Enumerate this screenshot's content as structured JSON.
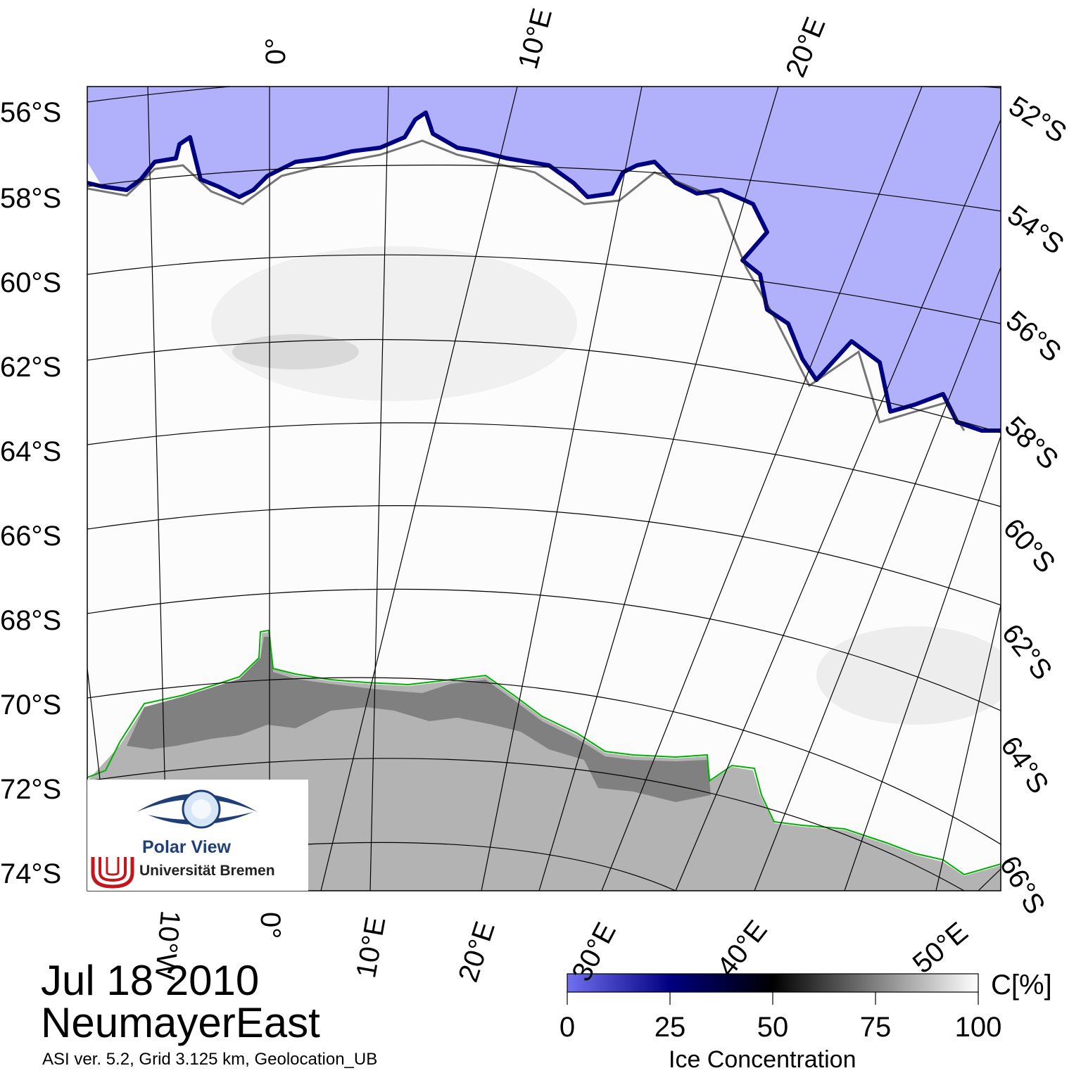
{
  "map": {
    "date": "Jul 18 2010",
    "region": "NeumayerEast",
    "metadata": "ASI ver. 5.2,  Grid 3.125 km, Geolocation_UB",
    "left_lat_labels": [
      "56°S",
      "58°S",
      "60°S",
      "62°S",
      "64°S",
      "66°S",
      "68°S",
      "70°S",
      "72°S",
      "74°S"
    ],
    "right_lat_labels": [
      "52°S",
      "54°S",
      "56°S",
      "58°S",
      "60°S",
      "62°S",
      "64°S",
      "66°S"
    ],
    "top_lon_labels": [
      "0°",
      "10°E",
      "20°E"
    ],
    "bottom_lon_labels": [
      "10°W",
      "0°",
      "10°E",
      "20°E",
      "30°E",
      "40°E",
      "50°E"
    ],
    "colors": {
      "open_water": "#b0b0fb",
      "ice_edge": "#000080",
      "land": "#b3b3b3",
      "ice_shelf": "#808080",
      "coastline": "#00b000",
      "sea_ice": "#ffffff"
    }
  },
  "logo": {
    "line1": "Polar View",
    "line2": "Universität Bremen"
  },
  "colorbar": {
    "unit": "C[%]",
    "title": "Ice Concentration",
    "ticks": [
      "0",
      "25",
      "50",
      "75",
      "100"
    ],
    "tick_values": [
      0,
      25,
      50,
      75,
      100
    ],
    "stops": [
      "#7070f0",
      "#000080",
      "#000000",
      "#808080",
      "#ffffff"
    ]
  }
}
